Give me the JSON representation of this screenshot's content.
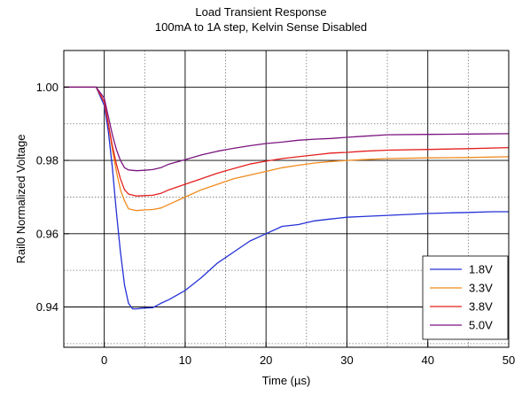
{
  "chart_data": {
    "type": "line",
    "title": "Load Transient Response",
    "subtitle": "100mA to 1A step, Kelvin Sense Disabled",
    "xlabel": "Time (µs)",
    "ylabel": "Rail0 Normalized Voltage",
    "xlim": [
      -5,
      50
    ],
    "ylim": [
      0.929,
      1.01
    ],
    "xticks": [
      0,
      10,
      20,
      30,
      40,
      50
    ],
    "xtick_labels": [
      "0",
      "10",
      "20",
      "30",
      "40",
      "50"
    ],
    "yticks": [
      0.94,
      0.96,
      0.98,
      1.0
    ],
    "ytick_labels": [
      "0.94",
      "0.96",
      "0.98",
      "1.00"
    ],
    "grid": true,
    "legend_position": "bottom-right",
    "series": [
      {
        "name": "1.8V",
        "color": "#2431d6",
        "x": [
          -5,
          -1,
          0,
          0.5,
          1,
          1.5,
          2,
          2.5,
          3,
          3.5,
          4,
          5,
          6,
          7,
          8,
          10,
          12,
          14,
          16,
          18,
          20,
          22,
          24,
          26,
          28,
          30,
          32,
          35,
          38,
          40,
          43,
          45,
          48,
          50
        ],
        "y": [
          1.0,
          1.0,
          0.995,
          0.988,
          0.978,
          0.966,
          0.955,
          0.946,
          0.941,
          0.9395,
          0.9395,
          0.9397,
          0.9398,
          0.941,
          0.942,
          0.9445,
          0.948,
          0.952,
          0.955,
          0.958,
          0.96,
          0.962,
          0.9625,
          0.9635,
          0.964,
          0.9645,
          0.9647,
          0.965,
          0.9653,
          0.9655,
          0.9657,
          0.9658,
          0.966,
          0.966
        ]
      },
      {
        "name": "3.3V",
        "color": "#f08a1c",
        "x": [
          -5,
          -1,
          0,
          0.5,
          1,
          1.5,
          2,
          2.5,
          3,
          4,
          5,
          6,
          7,
          8,
          10,
          12,
          14,
          16,
          18,
          20,
          22,
          24,
          26,
          28,
          30,
          32,
          35,
          40,
          45,
          50
        ],
        "y": [
          1.0,
          1.0,
          0.996,
          0.99,
          0.983,
          0.977,
          0.972,
          0.969,
          0.9668,
          0.9663,
          0.9665,
          0.9666,
          0.967,
          0.968,
          0.97,
          0.972,
          0.9735,
          0.975,
          0.976,
          0.977,
          0.978,
          0.9787,
          0.9793,
          0.9797,
          0.98,
          0.9802,
          0.9805,
          0.9807,
          0.9808,
          0.981
        ]
      },
      {
        "name": "3.8V",
        "color": "#e3201e",
        "x": [
          -5,
          -1,
          0,
          0.5,
          1,
          1.5,
          2,
          2.5,
          3,
          4,
          5,
          6,
          7,
          8,
          10,
          12,
          14,
          16,
          18,
          20,
          22,
          24,
          26,
          28,
          30,
          32,
          35,
          40,
          45,
          50
        ],
        "y": [
          1.0,
          1.0,
          0.996,
          0.99,
          0.984,
          0.979,
          0.975,
          0.972,
          0.9708,
          0.9703,
          0.9704,
          0.9705,
          0.971,
          0.972,
          0.9735,
          0.975,
          0.9765,
          0.9778,
          0.979,
          0.9798,
          0.9805,
          0.981,
          0.9815,
          0.982,
          0.9822,
          0.9825,
          0.9828,
          0.983,
          0.9832,
          0.9835
        ]
      },
      {
        "name": "5.0V",
        "color": "#7b1480",
        "x": [
          -5,
          -1,
          0,
          0.5,
          1,
          1.5,
          2,
          2.5,
          3,
          4,
          5,
          6,
          7,
          8,
          10,
          12,
          14,
          16,
          18,
          20,
          22,
          24,
          26,
          28,
          30,
          32,
          35,
          40,
          45,
          50
        ],
        "y": [
          1.0,
          1.0,
          0.997,
          0.992,
          0.987,
          0.983,
          0.98,
          0.978,
          0.9774,
          0.9772,
          0.9773,
          0.9775,
          0.978,
          0.979,
          0.9802,
          0.9815,
          0.9825,
          0.9833,
          0.984,
          0.9846,
          0.985,
          0.9855,
          0.9858,
          0.986,
          0.9863,
          0.9866,
          0.987,
          0.9871,
          0.9872,
          0.9873
        ]
      }
    ]
  }
}
